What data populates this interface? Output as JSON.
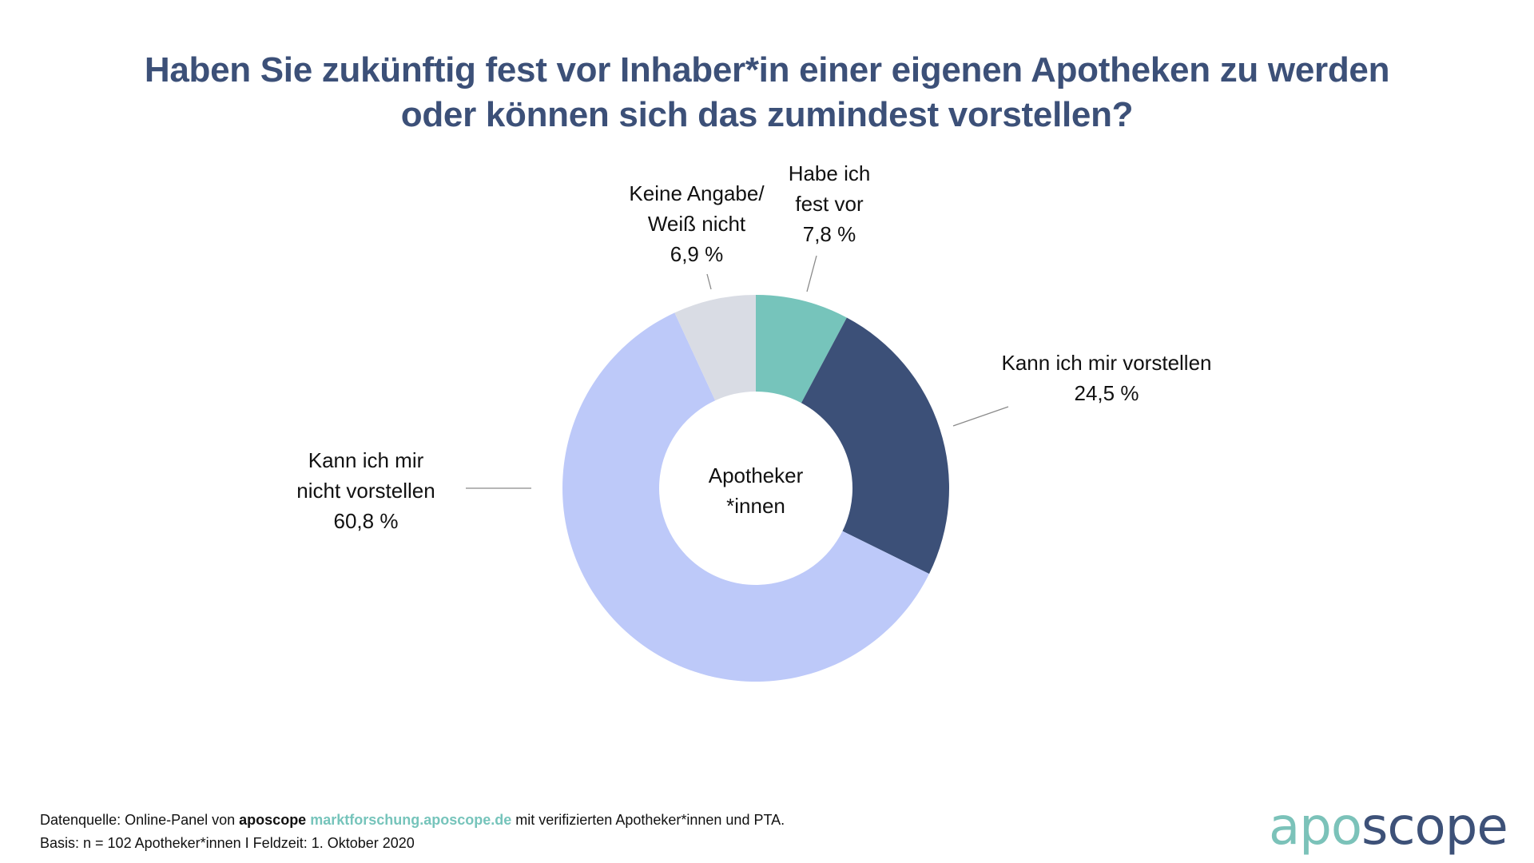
{
  "title": {
    "line1": "Haben Sie zukünftig fest vor Inhaber*in einer eigenen Apotheken zu werden",
    "line2": "oder können sich das zumindest vorstellen?"
  },
  "chart_data": {
    "type": "pie",
    "variant": "donut",
    "title": "Haben Sie zukünftig fest vor Inhaber*in einer eigenen Apotheken zu werden oder können sich das zumindest vorstellen?",
    "center_label": [
      "Apotheker",
      "*innen"
    ],
    "start": "top",
    "direction": "clockwise",
    "slices": [
      {
        "label": [
          "Habe ich",
          "fest vor"
        ],
        "value": 7.8,
        "value_label": "7,8 %",
        "color": "#76c4bb"
      },
      {
        "label": [
          "Kann ich mir vorstellen"
        ],
        "value": 24.5,
        "value_label": "24,5 %",
        "color": "#3c5078"
      },
      {
        "label": [
          "Kann ich mir",
          "nicht vorstellen"
        ],
        "value": 60.8,
        "value_label": "60,8 %",
        "color": "#bdc9f9"
      },
      {
        "label": [
          "Keine Angabe/",
          "Weiß nicht"
        ],
        "value": 6.9,
        "value_label": "6,9 %",
        "color": "#d9dce4"
      }
    ],
    "unit": "%",
    "legend": "none (data labels with leader lines)"
  },
  "footer": {
    "line1_prefix": "Datenquelle: Online-Panel von ",
    "line1_brand": "aposcope",
    "line1_url": "marktforschung.aposcope.de",
    "line1_suffix": " mit verifizierten Apotheker*innen und PTA.",
    "line2": "Basis: n = 102 Apotheker*innen I Feldzeit: 1. Oktober 2020"
  },
  "logo": {
    "part1": "apo",
    "part2": "scope"
  },
  "colors": {
    "title": "#3c5078",
    "brand_teal": "#76c4bb",
    "brand_navy": "#3c5078"
  }
}
